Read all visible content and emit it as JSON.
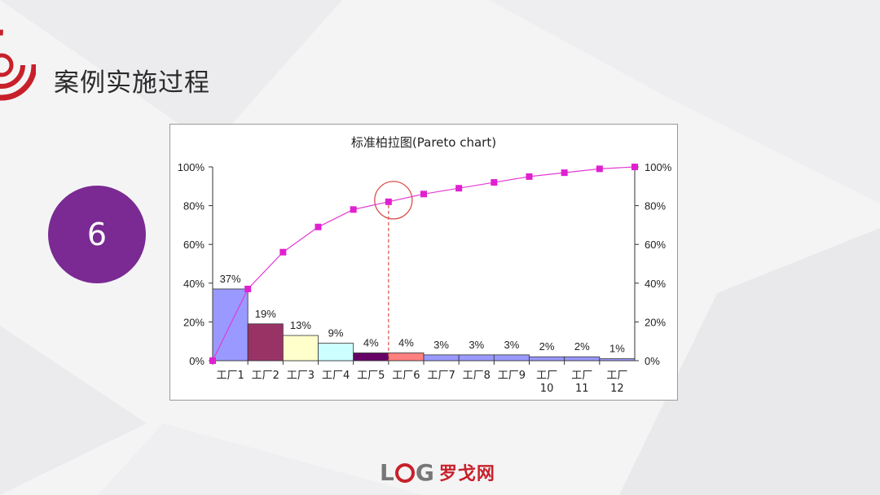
{
  "slide": {
    "title": "案例实施过程",
    "step_number": "6"
  },
  "footer": {
    "logo_text_a": "L",
    "logo_text_b": "G",
    "logo_cn": "罗戈网"
  },
  "colors": {
    "step_circle": "#7a2a92",
    "logo_red": "#c8202a",
    "cumulative_line": "#e23bd4",
    "marker": "#e020d0",
    "annotation": "#d9504a"
  },
  "chart_data": {
    "type": "bar",
    "title": "标准柏拉图(Pareto chart)",
    "categories": [
      [
        "工厂1"
      ],
      [
        "工厂2"
      ],
      [
        "工厂3"
      ],
      [
        "工厂4"
      ],
      [
        "工厂5"
      ],
      [
        "工厂6"
      ],
      [
        "工厂7"
      ],
      [
        "工厂8"
      ],
      [
        "工厂9"
      ],
      [
        "工厂",
        "10"
      ],
      [
        "工厂",
        "11"
      ],
      [
        "工厂",
        "12"
      ]
    ],
    "values": [
      37,
      19,
      13,
      9,
      4,
      4,
      3,
      3,
      3,
      2,
      2,
      1
    ],
    "data_labels": [
      "37%",
      "19%",
      "13%",
      "9%",
      "4%",
      "4%",
      "3%",
      "3%",
      "3%",
      "2%",
      "2%",
      "1%"
    ],
    "bar_colors": [
      "#9999ff",
      "#993366",
      "#ffffcc",
      "#ccffff",
      "#660066",
      "#ff8080",
      "#9999ff",
      "#9999ff",
      "#9999ff",
      "#9999ff",
      "#9999ff",
      "#9999ff"
    ],
    "cumulative": [
      0,
      37,
      56,
      69,
      78,
      82,
      86,
      89,
      92,
      95,
      97,
      99,
      100
    ],
    "ylim": [
      0,
      100
    ],
    "yticks": [
      "0%",
      "20%",
      "40%",
      "60%",
      "80%",
      "100%"
    ],
    "y2ticks": [
      "0%",
      "20%",
      "40%",
      "60%",
      "80%",
      "100%"
    ],
    "highlight_cumulative_index": 5,
    "grid": false,
    "xlabel": "",
    "ylabel": ""
  }
}
